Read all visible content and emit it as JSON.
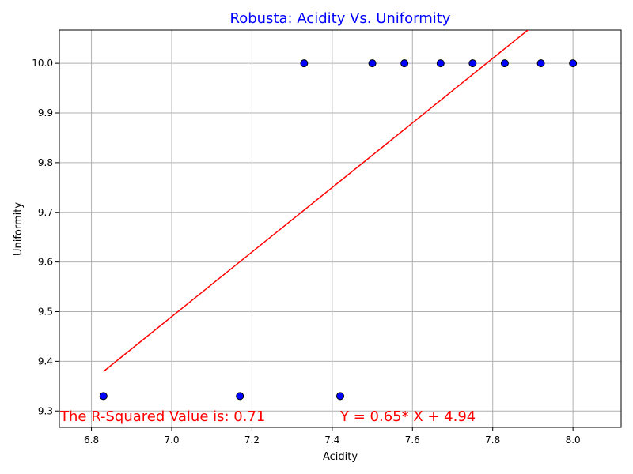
{
  "chart_data": {
    "type": "scatter",
    "title": "Robusta: Acidity Vs. Uniformity",
    "xlabel": "Acidity",
    "ylabel": "Uniformity",
    "xlim": [
      6.72,
      8.12
    ],
    "ylim": [
      9.267,
      10.067
    ],
    "grid": true,
    "x_ticks": [
      "6.8",
      "7.0",
      "7.2",
      "7.4",
      "7.6",
      "7.8",
      "8.0"
    ],
    "y_ticks": [
      "9.3",
      "9.4",
      "9.5",
      "9.6",
      "9.7",
      "9.8",
      "9.9",
      "10.0"
    ],
    "points": [
      {
        "x": 6.83,
        "y": 9.33
      },
      {
        "x": 7.17,
        "y": 9.33
      },
      {
        "x": 7.42,
        "y": 9.33
      },
      {
        "x": 7.33,
        "y": 10.0
      },
      {
        "x": 7.5,
        "y": 10.0
      },
      {
        "x": 7.58,
        "y": 10.0
      },
      {
        "x": 7.67,
        "y": 10.0
      },
      {
        "x": 7.75,
        "y": 10.0
      },
      {
        "x": 7.83,
        "y": 10.0
      },
      {
        "x": 7.92,
        "y": 10.0
      },
      {
        "x": 8.0,
        "y": 10.0
      }
    ],
    "regression": {
      "slope": 0.65,
      "intercept": 4.94,
      "x_range": [
        6.83,
        8.0
      ]
    },
    "annotations": {
      "r_squared": "The R-Squared Value is: 0.71",
      "equation": "Y = 0.65* X + 4.94"
    },
    "colors": {
      "title": "#0000ff",
      "point_fill": "#0000ff",
      "point_edge": "#000000",
      "line": "#ff0000",
      "annotation": "#ff0000",
      "grid": "#b0b0b0"
    }
  }
}
